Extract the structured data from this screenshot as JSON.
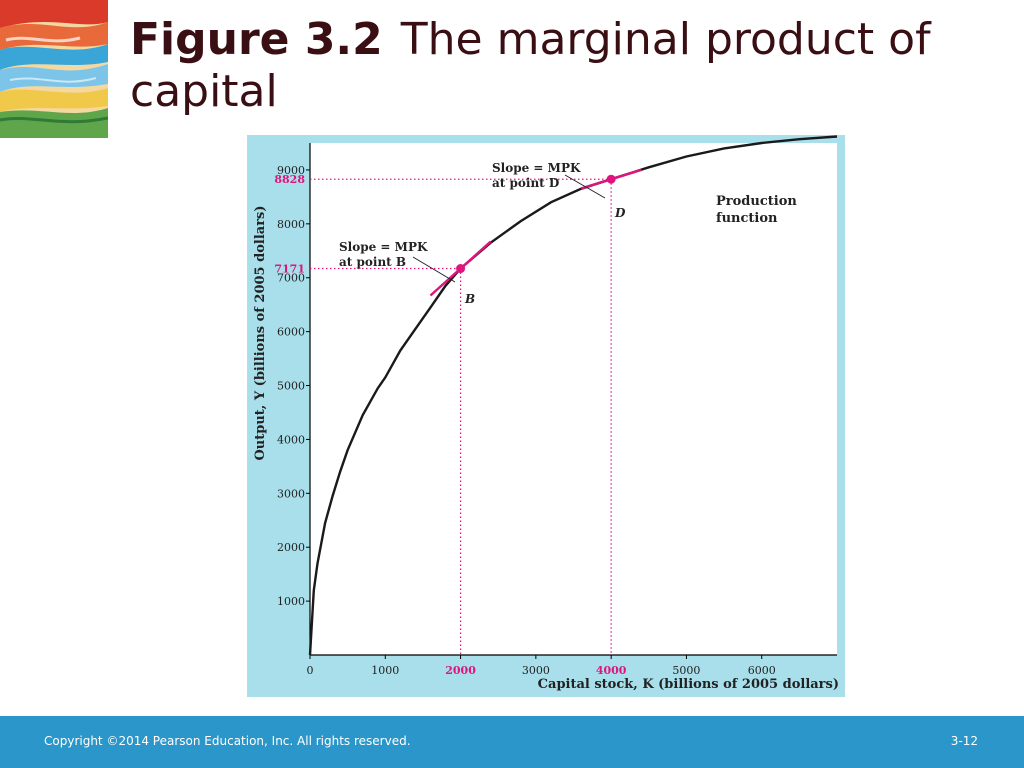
{
  "slide": {
    "title_number": "Figure 3.2",
    "title_text": "The marginal product of capital",
    "footer_copyright": "Copyright ©2014 Pearson Education, Inc. All rights reserved.",
    "page_number": "3-12",
    "art_icon": "abstract-painting-icon"
  },
  "colors": {
    "title": "#3a0f14",
    "curve": "#1a1a1a",
    "highlight": "#e0147e",
    "chart_background": "#a8dfea",
    "footer": "#2b96c9"
  },
  "chart_data": {
    "type": "line",
    "title": "",
    "xlabel": "Capital stock, K (billions of 2005 dollars)",
    "ylabel": "Output, Y (billions of 2005 dollars)",
    "xlim": [
      0,
      7000
    ],
    "ylim": [
      0,
      9500
    ],
    "x_ticks": [
      "0",
      "1000",
      "2000",
      "3000",
      "4000",
      "5000",
      "6000"
    ],
    "y_ticks": [
      "1000",
      "2000",
      "3000",
      "4000",
      "5000",
      "6000",
      "7000",
      "8000",
      "9000"
    ],
    "highlighted_x_ticks": [
      "2000",
      "4000"
    ],
    "highlighted_y_ticks": [
      "7171",
      "8828"
    ],
    "series": [
      {
        "x": [
          0,
          50,
          100,
          200,
          300,
          400,
          500,
          700,
          900,
          1000,
          1200,
          1400,
          1600,
          1800,
          2000,
          2400,
          2800,
          3200,
          3600,
          4000,
          4500,
          5000,
          5500,
          6000,
          6500,
          7000
        ],
        "y": [
          0,
          1200,
          1700,
          2450,
          2950,
          3400,
          3800,
          4450,
          4950,
          5150,
          5650,
          6050,
          6450,
          6850,
          7171,
          7650,
          8050,
          8400,
          8650,
          8828,
          9050,
          9250,
          9400,
          9500,
          9570,
          9620
        ]
      }
    ],
    "points": [
      {
        "name": "B",
        "x": 2000,
        "y": 7171,
        "slope": 1.25
      },
      {
        "name": "D",
        "x": 4000,
        "y": 8828,
        "slope": 0.43
      }
    ],
    "annotations": {
      "curve_label_1": "Production",
      "curve_label_2": "function",
      "slope_b_1": "Slope = MPK",
      "slope_b_2": "at point B",
      "slope_d_1": "Slope = MPK",
      "slope_d_2": "at point D",
      "point_b": "B",
      "point_d": "D"
    },
    "grid": false,
    "legend": "none"
  }
}
